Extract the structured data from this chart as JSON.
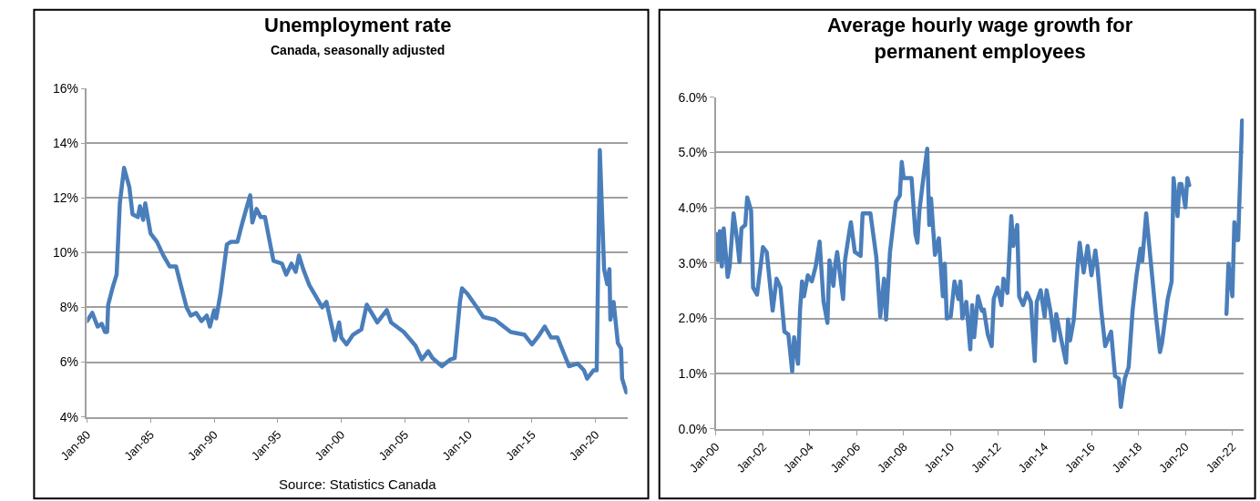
{
  "chart_data": [
    {
      "type": "line",
      "title": "Unemployment rate",
      "subtitle": "Canada, seasonally adjusted",
      "annotations": [
        "Source: Statistics Canada"
      ],
      "grid": "y",
      "xlim": [
        "1980-01",
        "2022-07"
      ],
      "xticks": [
        {
          "value": "1980-01",
          "label": "Jan-80"
        },
        {
          "value": "1985-01",
          "label": "Jan-85"
        },
        {
          "value": "1990-01",
          "label": "Jan-90"
        },
        {
          "value": "1995-01",
          "label": "Jan-95"
        },
        {
          "value": "2000-01",
          "label": "Jan-00"
        },
        {
          "value": "2005-01",
          "label": "Jan-05"
        },
        {
          "value": "2010-01",
          "label": "Jan-10"
        },
        {
          "value": "2015-01",
          "label": "Jan-15"
        },
        {
          "value": "2020-01",
          "label": "Jan-20"
        }
      ],
      "ylim": [
        4,
        16
      ],
      "yticks": [
        {
          "value": 4,
          "label": "4%"
        },
        {
          "value": 6,
          "label": "6%"
        },
        {
          "value": 8,
          "label": "8%"
        },
        {
          "value": 10,
          "label": "10%"
        },
        {
          "value": 12,
          "label": "12%"
        },
        {
          "value": 14,
          "label": "14%"
        },
        {
          "value": 16,
          "label": "16%"
        }
      ],
      "x": [
        "1980-01",
        "1980-06",
        "1980-11",
        "1981-03",
        "1981-06",
        "1981-08",
        "1981-09",
        "1982-01",
        "1982-05",
        "1982-08",
        "1982-12",
        "1983-05",
        "1983-08",
        "1984-01",
        "1984-03",
        "1984-06",
        "1984-08",
        "1985-01",
        "1985-07",
        "1986-01",
        "1986-07",
        "1987-01",
        "1987-05",
        "1987-11",
        "1988-03",
        "1988-08",
        "1989-01",
        "1989-06",
        "1989-09",
        "1990-01",
        "1990-03",
        "1990-07",
        "1991-01",
        "1991-05",
        "1991-11",
        "1992-03",
        "1992-08",
        "1992-11",
        "1993-01",
        "1993-05",
        "1993-09",
        "1994-01",
        "1994-05",
        "1994-09",
        "1995-05",
        "1995-09",
        "1996-02",
        "1996-06",
        "1996-09",
        "1997-01",
        "1997-07",
        "1998-01",
        "1998-07",
        "1998-11",
        "1999-03",
        "1999-07",
        "1999-11",
        "2000-01",
        "2000-06",
        "2000-12",
        "2001-08",
        "2002-01",
        "2002-11",
        "2003-08",
        "2003-12",
        "2004-12",
        "2005-11",
        "2006-05",
        "2006-11",
        "2007-03",
        "2007-12",
        "2008-08",
        "2008-12",
        "2009-05",
        "2009-07",
        "2009-12",
        "2010-09",
        "2011-03",
        "2012-02",
        "2013-05",
        "2014-06",
        "2015-01",
        "2015-08",
        "2016-01",
        "2016-07",
        "2017-01",
        "2017-12",
        "2018-08",
        "2019-02",
        "2019-05",
        "2019-11",
        "2020-02",
        "2020-05",
        "2020-09",
        "2020-12",
        "2021-02",
        "2021-03",
        "2021-06",
        "2021-10",
        "2022-01",
        "2022-02",
        "2022-06"
      ],
      "series": [
        {
          "color": "#4a7ebb",
          "values": [
            7.5,
            7.8,
            7.3,
            7.4,
            7.1,
            7.1,
            8.1,
            8.7,
            9.2,
            11.8,
            13.1,
            12.4,
            11.4,
            11.3,
            11.7,
            11.2,
            11.8,
            10.7,
            10.4,
            9.9,
            9.5,
            9.5,
            8.9,
            8.0,
            7.7,
            7.8,
            7.5,
            7.7,
            7.3,
            7.9,
            7.6,
            8.5,
            10.3,
            10.4,
            10.4,
            11.0,
            11.7,
            12.1,
            11.1,
            11.6,
            11.3,
            11.3,
            10.5,
            9.7,
            9.6,
            9.2,
            9.6,
            9.3,
            9.9,
            9.4,
            8.8,
            8.4,
            8.0,
            8.2,
            7.5,
            6.8,
            7.45,
            6.9,
            6.65,
            7.0,
            7.2,
            8.1,
            7.45,
            7.9,
            7.45,
            7.1,
            6.6,
            6.1,
            6.4,
            6.15,
            5.85,
            6.1,
            6.15,
            8.2,
            8.7,
            8.5,
            8.0,
            7.65,
            7.55,
            7.1,
            7.0,
            6.65,
            7.0,
            7.3,
            6.9,
            6.9,
            5.85,
            5.95,
            5.7,
            5.4,
            5.7,
            5.7,
            13.75,
            9.4,
            8.85,
            9.4,
            7.55,
            8.2,
            6.7,
            6.5,
            5.4,
            4.9
          ]
        }
      ]
    },
    {
      "type": "line",
      "title": "Average hourly wage growth for\npermanent employees",
      "grid": "y",
      "xlim": [
        "2000-01",
        "2022-07"
      ],
      "xticks": [
        {
          "value": "2000-01",
          "label": "Jan-00"
        },
        {
          "value": "2002-01",
          "label": "Jan-02"
        },
        {
          "value": "2004-01",
          "label": "Jan-04"
        },
        {
          "value": "2006-01",
          "label": "Jan-06"
        },
        {
          "value": "2008-01",
          "label": "Jan-08"
        },
        {
          "value": "2010-01",
          "label": "Jan-10"
        },
        {
          "value": "2012-01",
          "label": "Jan-12"
        },
        {
          "value": "2014-01",
          "label": "Jan-14"
        },
        {
          "value": "2016-01",
          "label": "Jan-16"
        },
        {
          "value": "2018-01",
          "label": "Jan-18"
        },
        {
          "value": "2020-01",
          "label": "Jan-20"
        },
        {
          "value": "2022-01",
          "label": "Jan-22"
        }
      ],
      "ylim": [
        0,
        6
      ],
      "yticks": [
        {
          "value": 0,
          "label": "0.0%"
        },
        {
          "value": 1,
          "label": "1.0%"
        },
        {
          "value": 2,
          "label": "2.0%"
        },
        {
          "value": 3,
          "label": "3.0%"
        },
        {
          "value": 4,
          "label": "4.0%"
        },
        {
          "value": 5,
          "label": "5.0%"
        },
        {
          "value": 6,
          "label": "6.0%"
        }
      ],
      "x": [
        "2000-01",
        "2000-02",
        "2000-03",
        "2000-04",
        "2000-05",
        "2000-07",
        "2000-08",
        "2000-10",
        "2000-12",
        "2001-01",
        "2001-02",
        "2001-04",
        "2001-05",
        "2001-07",
        "2001-08",
        "2001-10",
        "2001-11",
        "2002-01",
        "2002-03",
        "2002-06",
        "2002-08",
        "2002-10",
        "2002-12",
        "2003-02",
        "2003-04",
        "2003-05",
        "2003-07",
        "2003-08",
        "2003-09",
        "2003-10",
        "2003-12",
        "2004-02",
        "2004-04",
        "2004-06",
        "2004-08",
        "2004-10",
        "2004-11",
        "2005-01",
        "2005-02",
        "2005-03",
        "2005-06",
        "2005-07",
        "2005-09",
        "2005-10",
        "2005-12",
        "2006-03",
        "2006-04",
        "2006-07",
        "2006-08",
        "2006-11",
        "2007-01",
        "2007-03",
        "2007-04",
        "2007-06",
        "2007-09",
        "2007-11",
        "2007-12",
        "2008-01",
        "2008-03",
        "2008-05",
        "2008-07",
        "2008-08",
        "2008-09",
        "2008-11",
        "2009-01",
        "2009-02",
        "2009-03",
        "2009-05",
        "2009-07",
        "2009-09",
        "2009-10",
        "2009-11",
        "2010-01",
        "2010-03",
        "2010-05",
        "2010-06",
        "2010-07",
        "2010-09",
        "2010-11",
        "2010-12",
        "2011-01",
        "2011-03",
        "2011-05",
        "2011-06",
        "2011-08",
        "2011-10",
        "2011-11",
        "2012-01",
        "2012-03",
        "2012-04",
        "2012-06",
        "2012-08",
        "2012-09",
        "2012-11",
        "2012-12",
        "2013-02",
        "2013-04",
        "2013-06",
        "2013-08",
        "2013-09",
        "2013-11",
        "2014-01",
        "2014-02",
        "2014-04",
        "2014-06",
        "2014-07",
        "2014-09",
        "2014-12",
        "2015-01",
        "2015-02",
        "2015-04",
        "2015-06",
        "2015-07",
        "2015-09",
        "2015-11",
        "2016-01",
        "2016-03",
        "2016-04",
        "2016-06",
        "2016-08",
        "2016-11",
        "2017-01",
        "2017-03",
        "2017-04",
        "2017-06",
        "2017-08",
        "2017-10",
        "2017-12",
        "2018-02",
        "2018-03",
        "2018-05",
        "2018-07",
        "2018-10",
        "2018-12",
        "2019-01",
        "2019-04",
        "2019-06",
        "2019-07",
        "2019-09",
        "2019-10",
        "2019-11",
        "2020-01",
        "2020-02",
        "2020-03",
        "2021-01",
        "2021-10",
        "2021-11",
        "2022-01",
        "2022-02",
        "2022-03",
        "2022-04",
        "2022-06"
      ],
      "series": [
        {
          "color": "#4a7ebb",
          "values": [
            3.53,
            3.05,
            3.58,
            2.94,
            3.63,
            2.75,
            2.94,
            3.9,
            3.37,
            3.02,
            3.63,
            3.69,
            4.19,
            3.95,
            2.56,
            2.43,
            2.72,
            3.29,
            3.2,
            2.14,
            2.72,
            2.56,
            1.76,
            1.71,
            1.04,
            1.66,
            1.18,
            2.14,
            2.67,
            2.4,
            2.78,
            2.67,
            2.94,
            3.39,
            2.3,
            1.92,
            3.05,
            2.59,
            2.99,
            3.2,
            2.35,
            3.05,
            3.53,
            3.74,
            3.2,
            3.13,
            3.9,
            3.9,
            3.9,
            3.1,
            2.03,
            2.72,
            1.98,
            3.2,
            4.11,
            4.22,
            4.83,
            4.54,
            4.54,
            4.54,
            3.53,
            3.37,
            3.95,
            4.54,
            5.07,
            3.69,
            4.17,
            3.15,
            3.45,
            2.4,
            2.99,
            2.0,
            2.03,
            2.67,
            2.35,
            2.67,
            2.0,
            2.3,
            1.44,
            2.24,
            1.66,
            2.4,
            2.14,
            2.16,
            1.71,
            1.5,
            2.35,
            2.56,
            2.24,
            2.72,
            2.46,
            3.85,
            3.31,
            3.69,
            2.4,
            2.24,
            2.46,
            2.3,
            1.23,
            2.3,
            2.51,
            2.03,
            2.51,
            2.14,
            1.6,
            2.08,
            1.71,
            1.2,
            1.98,
            1.6,
            1.98,
            2.99,
            3.37,
            2.83,
            3.31,
            2.78,
            3.23,
            2.94,
            2.14,
            1.5,
            1.76,
            0.96,
            0.91,
            0.4,
            0.91,
            1.12,
            2.14,
            2.78,
            3.26,
            3.04,
            3.9,
            3.15,
            2.03,
            1.39,
            1.55,
            2.35,
            2.67,
            4.54,
            3.85,
            4.43,
            4.43,
            4.01,
            4.54,
            4.41,
            null,
            2.08,
            2.99,
            2.4,
            3.74,
            3.42,
            3.42,
            5.58
          ]
        }
      ]
    }
  ]
}
